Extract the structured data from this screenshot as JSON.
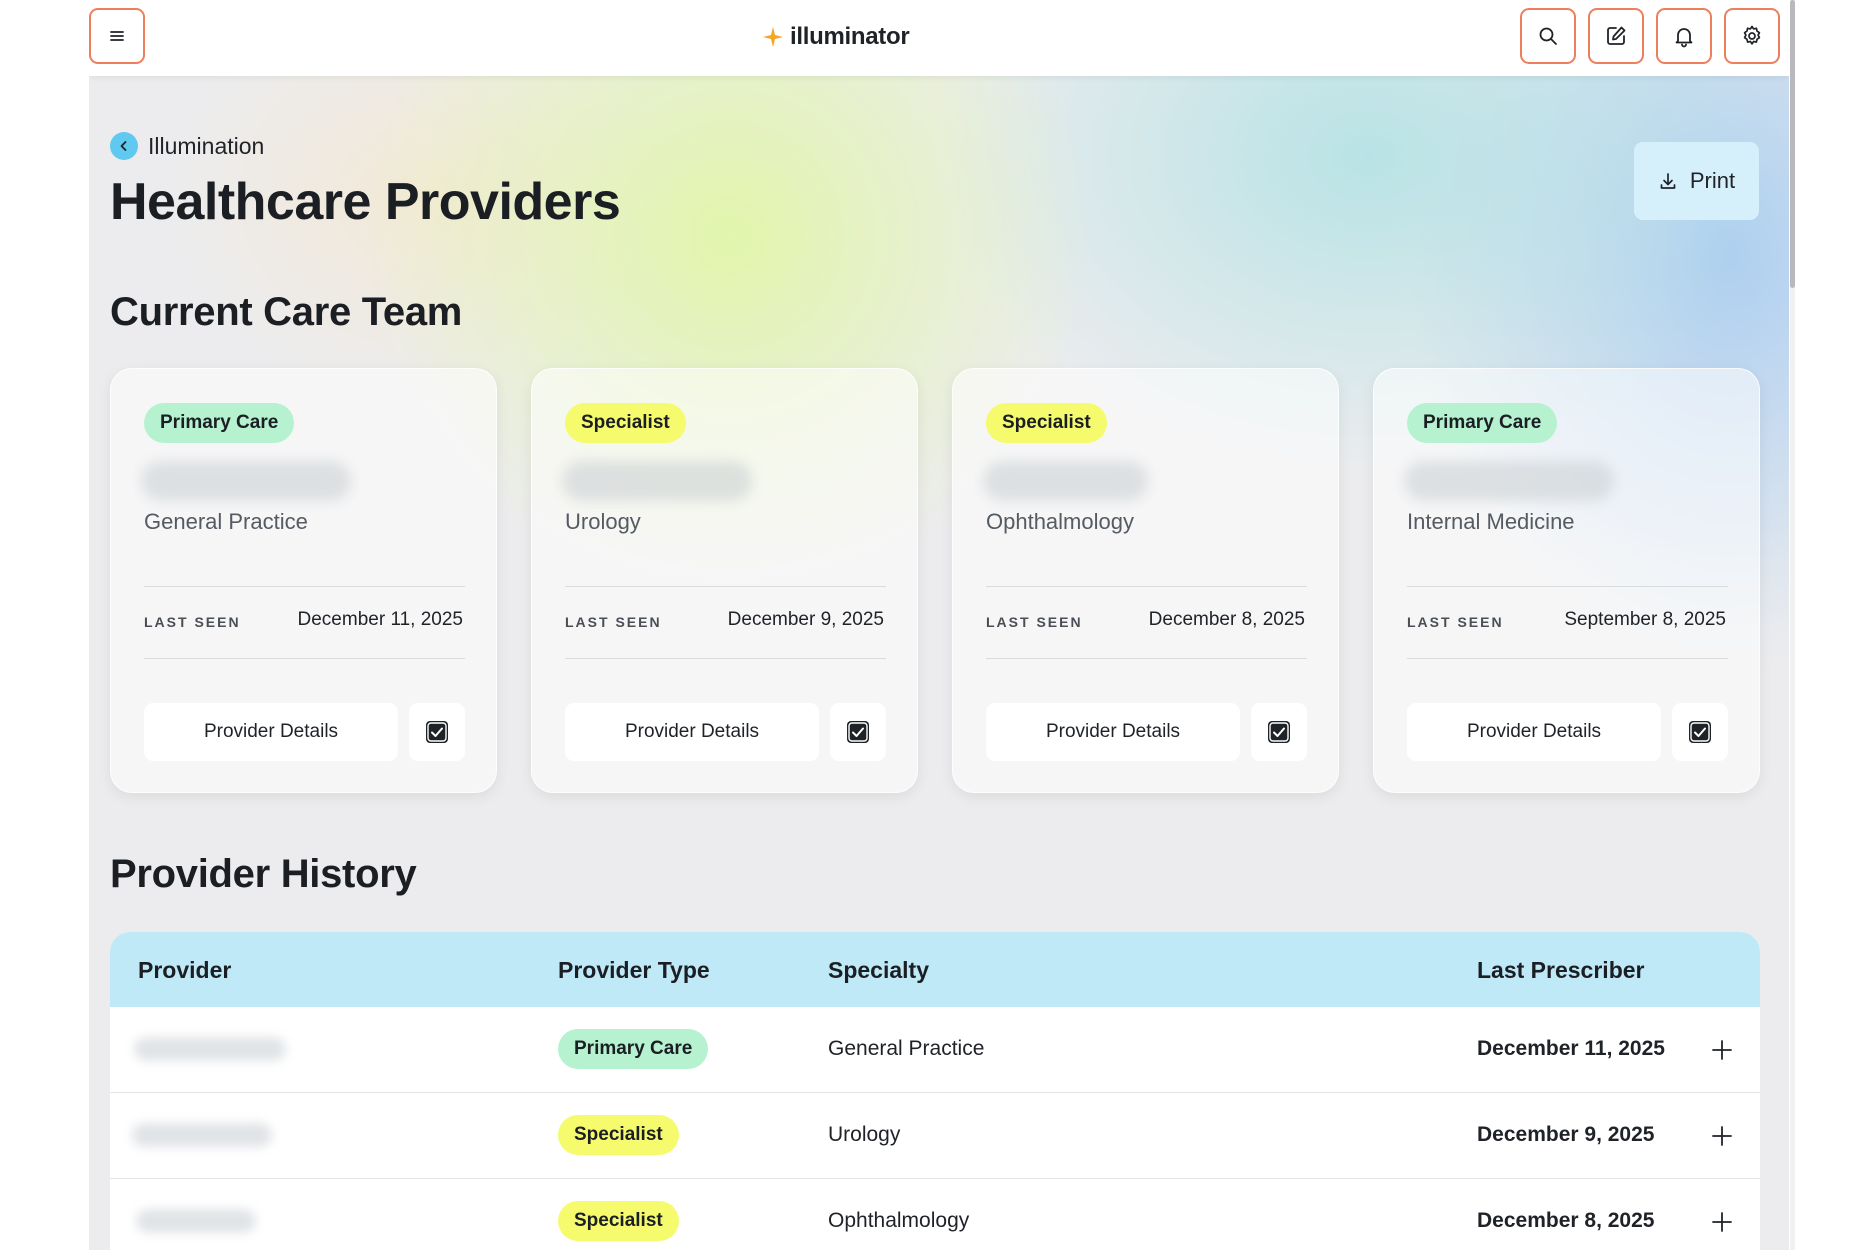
{
  "app": {
    "brand_name": "illuminator",
    "brand_color": "#f5a623",
    "accent_outline": "#ee7f5e",
    "topbar_icons": [
      "menu-icon",
      "search-icon",
      "edit-icon",
      "bell-icon",
      "gear-icon"
    ]
  },
  "header": {
    "breadcrumb": "Illumination",
    "title": "Healthcare Providers",
    "print_label": "Print"
  },
  "care_team": {
    "title": "Current Care Team",
    "last_seen_label": "LAST SEEN",
    "details_label": "Provider Details",
    "cards": [
      {
        "type": "Primary Care",
        "type_key": "primary",
        "specialty": "General Practice",
        "last_seen": "December 11, 2025"
      },
      {
        "type": "Specialist",
        "type_key": "specialist",
        "specialty": "Urology",
        "last_seen": "December 9, 2025"
      },
      {
        "type": "Specialist",
        "type_key": "specialist",
        "specialty": "Ophthalmology",
        "last_seen": "December 8, 2025"
      },
      {
        "type": "Primary Care",
        "type_key": "primary",
        "specialty": "Internal Medicine",
        "last_seen": "September 8, 2025"
      }
    ]
  },
  "history": {
    "title": "Provider History",
    "columns": {
      "provider": "Provider",
      "provider_type": "Provider Type",
      "specialty": "Specialty",
      "last_prescriber": "Last Prescriber"
    },
    "rows": [
      {
        "type": "Primary Care",
        "type_key": "primary",
        "specialty": "General Practice",
        "date": "December 11, 2025"
      },
      {
        "type": "Specialist",
        "type_key": "specialist",
        "specialty": "Urology",
        "date": "December 9, 2025"
      },
      {
        "type": "Specialist",
        "type_key": "specialist",
        "specialty": "Ophthalmology",
        "date": "December 8, 2025"
      }
    ]
  },
  "colors": {
    "primary_badge": "#b6f2cf",
    "specialist_badge": "#f5fb6d",
    "table_header": "#bfe9f7",
    "print_button": "#d5f0fa"
  }
}
